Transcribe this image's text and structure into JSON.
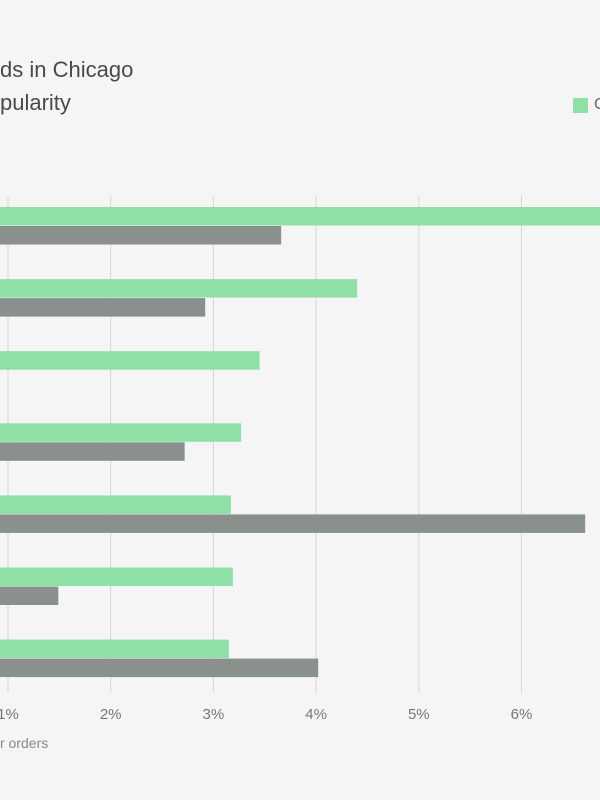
{
  "title_line1": "ds in Chicago",
  "title_line2": "pularity",
  "legend": [
    {
      "label": "C",
      "color": "#8fe0a6"
    }
  ],
  "chart_data": {
    "type": "bar",
    "orientation": "horizontal",
    "title": "ds in Chicago pularity",
    "xlabel": "r orders",
    "xlim": [
      0.99,
      6.8
    ],
    "x_ticks": [
      1,
      2,
      3,
      4,
      5,
      6
    ],
    "x_tick_labels": [
      "1%",
      "2%",
      "3%",
      "4%",
      "5%",
      "6%"
    ],
    "grid": true,
    "legend_position": "top-right",
    "series": [
      {
        "name": "C",
        "color": "#8fe0a6",
        "values": [
          6.8,
          4.4,
          3.45,
          3.27,
          3.17,
          3.19,
          3.15
        ]
      },
      {
        "color": "#8a918d",
        "values": [
          3.66,
          2.92,
          null,
          2.72,
          6.62,
          1.49,
          4.02
        ]
      }
    ]
  }
}
